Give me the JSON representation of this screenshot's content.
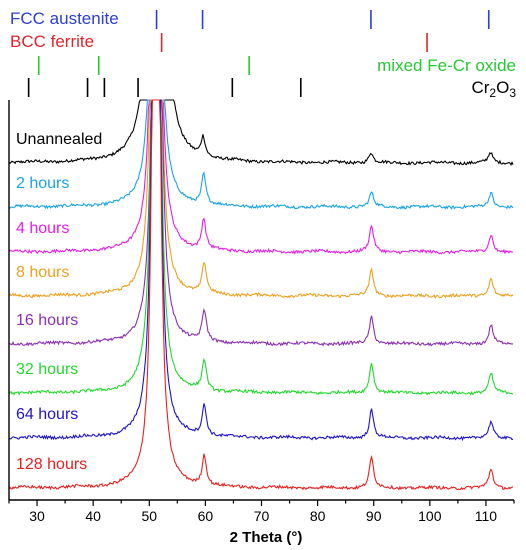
{
  "chart_data": {
    "type": "line",
    "xlabel": "2 Theta (°)",
    "xlim": [
      25,
      115
    ],
    "xticks": [
      30,
      40,
      50,
      60,
      70,
      80,
      90,
      100,
      110
    ],
    "grid": false,
    "reference_phases": [
      {
        "name": "FCC austenite",
        "color": "#2b3fd1",
        "positions": [
          51.3,
          59.5,
          89.5,
          110.5
        ]
      },
      {
        "name": "BCC ferrite",
        "color": "#e0242b",
        "positions": [
          52.2,
          99.5
        ]
      },
      {
        "name": "mixed Fe-Cr oxide",
        "color": "#28c832",
        "positions": [
          30.3,
          41.0,
          67.8
        ]
      },
      {
        "name": "Cr",
        "sub": "2",
        "tail": "O",
        "sub2": "3",
        "color": "#000000",
        "positions": [
          28.5,
          39.0,
          42.0,
          48.0,
          64.8,
          77.0
        ]
      }
    ],
    "series": [
      {
        "name": "Unannealed",
        "color": "#000000",
        "baseline": 0.0,
        "peaks": [
          [
            51.0,
            45
          ],
          [
            51.7,
            45
          ],
          [
            59.6,
            0.62
          ],
          [
            89.5,
            0.32
          ],
          [
            110.8,
            0.32
          ]
        ]
      },
      {
        "name": "2 hours",
        "color": "#1aa3e8",
        "baseline": 1.0,
        "peaks": [
          [
            51.2,
            45
          ],
          [
            59.7,
            0.95
          ],
          [
            89.6,
            0.45
          ],
          [
            110.9,
            0.45
          ]
        ]
      },
      {
        "name": "4 hours",
        "color": "#e61ee6",
        "baseline": 2.0,
        "peaks": [
          [
            51.2,
            45
          ],
          [
            52.1,
            0.18
          ],
          [
            59.7,
            0.95
          ],
          [
            89.6,
            0.8
          ],
          [
            110.9,
            0.55
          ]
        ]
      },
      {
        "name": "8 hours",
        "color": "#f0a01e",
        "baseline": 3.0,
        "peaks": [
          [
            51.2,
            45
          ],
          [
            52.2,
            0.32
          ],
          [
            59.8,
            0.95
          ],
          [
            89.6,
            0.8
          ],
          [
            110.9,
            0.55
          ]
        ]
      },
      {
        "name": "16 hours",
        "color": "#8b2fb3",
        "baseline": 4.0,
        "peaks": [
          [
            51.3,
            45
          ],
          [
            52.2,
            0.4
          ],
          [
            59.8,
            0.95
          ],
          [
            89.6,
            0.85
          ],
          [
            110.9,
            0.6
          ]
        ]
      },
      {
        "name": "32 hours",
        "color": "#22d82e",
        "baseline": 5.0,
        "peaks": [
          [
            51.2,
            45
          ],
          [
            52.2,
            0.4
          ],
          [
            59.8,
            0.95
          ],
          [
            89.6,
            0.95
          ],
          [
            110.9,
            0.6
          ]
        ]
      },
      {
        "name": "64 hours",
        "color": "#1f14c8",
        "baseline": 6.0,
        "peaks": [
          [
            51.2,
            45
          ],
          [
            52.2,
            0.5
          ],
          [
            59.8,
            0.95
          ],
          [
            89.6,
            0.88
          ],
          [
            110.9,
            0.5
          ]
        ]
      },
      {
        "name": "128 hours",
        "color": "#e8201e",
        "baseline": 7.0,
        "peaks": [
          [
            51.2,
            45
          ],
          [
            52.2,
            0.6
          ],
          [
            59.8,
            0.95
          ],
          [
            89.6,
            0.95
          ],
          [
            110.9,
            0.6
          ]
        ]
      }
    ]
  }
}
